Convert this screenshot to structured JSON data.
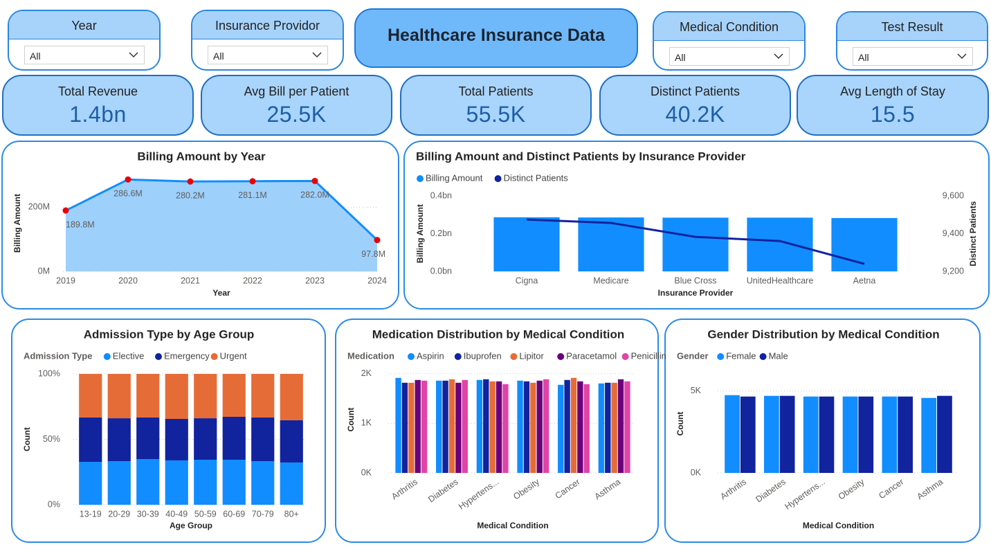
{
  "header": {
    "title": "Healthcare Insurance Data"
  },
  "filters": [
    {
      "label": "Year",
      "value": "All"
    },
    {
      "label": "Insurance Providor",
      "value": "All"
    },
    {
      "label": "Medical Condition",
      "value": "All"
    },
    {
      "label": "Test Result",
      "value": "All"
    }
  ],
  "kpis": [
    {
      "label": "Total Revenue",
      "value": "1.4bn"
    },
    {
      "label": "Avg Bill per Patient",
      "value": "25.5K"
    },
    {
      "label": "Total Patients",
      "value": "55.5K"
    },
    {
      "label": "Distinct Patients",
      "value": "40.2K"
    },
    {
      "label": "Avg Length of Stay",
      "value": "15.5"
    }
  ],
  "chart_data": [
    {
      "type": "area",
      "title": "Billing Amount by Year",
      "x_label": "Year",
      "y_label": "Billing Amount",
      "categories": [
        "2019",
        "2020",
        "2021",
        "2022",
        "2023",
        "2024"
      ],
      "values": [
        189.8,
        286.6,
        280.2,
        281.1,
        282.0,
        97.8
      ],
      "value_labels": [
        "189.8M",
        "286.6M",
        "280.2M",
        "281.1M",
        "282.0M",
        "97.8M"
      ],
      "color": "#118DFF",
      "fill_color": "#9ed0fc",
      "marker_color": "#e8000b",
      "ylim": [
        0,
        300
      ],
      "yticks": [
        {
          "value": 0,
          "label": "0M"
        },
        {
          "value": 200,
          "label": "200M"
        }
      ],
      "grid": true
    },
    {
      "type": "combo",
      "title": "Billing Amount and Distinct Patients by Insurance Provider",
      "x_label": "Insurance Provider",
      "y_label": "Billing Amount",
      "y2_label": "Distinct Patients",
      "categories": [
        "Cigna",
        "Medicare",
        "Blue Cross",
        "UnitedHealthcare",
        "Aetna"
      ],
      "series": [
        {
          "name": "Billing Amount",
          "type": "bar",
          "color": "#118DFF",
          "values": [
            0.287,
            0.286,
            0.285,
            0.285,
            0.283
          ]
        },
        {
          "name": "Distinct Patients",
          "type": "line",
          "axis": "y2",
          "color": "#12239E",
          "values": [
            9475,
            9457,
            9383,
            9361,
            9240
          ]
        }
      ],
      "ylim": [
        0,
        0.4
      ],
      "yticks": [
        {
          "value": 0,
          "label": "0.0bn"
        },
        {
          "value": 0.2,
          "label": "0.2bn"
        },
        {
          "value": 0.4,
          "label": "0.4bn"
        }
      ],
      "y2lim": [
        9200,
        9600
      ],
      "y2ticks": [
        {
          "value": 9200,
          "label": "9,200"
        },
        {
          "value": 9400,
          "label": "9,400"
        },
        {
          "value": 9600,
          "label": "9,600"
        }
      ],
      "grid": false
    },
    {
      "type": "stacked_bar",
      "title": "Admission Type by Age Group",
      "x_label": "Age Group",
      "y_label": "Count",
      "legend_title": "Admission Type",
      "categories": [
        "13-19",
        "20-29",
        "30-39",
        "40-49",
        "50-59",
        "60-69",
        "70-79",
        "80+"
      ],
      "series": [
        {
          "name": "Elective",
          "color": "#118DFF",
          "values": [
            32.8,
            33.3,
            34.9,
            33.9,
            34.4,
            34.4,
            33.3,
            32.3
          ]
        },
        {
          "name": "Emergency",
          "color": "#12239E",
          "values": [
            33.9,
            32.8,
            31.8,
            31.7,
            31.7,
            32.8,
            33.4,
            32.3
          ]
        },
        {
          "name": "Urgent",
          "color": "#E66C37",
          "values": [
            33.3,
            33.9,
            33.3,
            34.4,
            33.9,
            32.8,
            33.3,
            35.4
          ]
        }
      ],
      "ylim": [
        0,
        100
      ],
      "yticks": [
        {
          "value": 0,
          "label": "0%"
        },
        {
          "value": 50,
          "label": "50%"
        },
        {
          "value": 100,
          "label": "100%"
        }
      ],
      "grid": true
    },
    {
      "type": "grouped_bar",
      "title": "Medication Distribution by Medical Condition",
      "x_label": "Medical Condition",
      "y_label": "Count",
      "legend_title": "Medication",
      "categories": [
        "Arthritis",
        "Diabetes",
        "Hypertens...",
        "Obesity",
        "Cancer",
        "Asthma"
      ],
      "series": [
        {
          "name": "Aspirin",
          "color": "#118DFF",
          "values": [
            1916,
            1860,
            1874,
            1860,
            1776,
            1804
          ]
        },
        {
          "name": "Ibuprofen",
          "color": "#12239E",
          "values": [
            1818,
            1860,
            1888,
            1846,
            1874,
            1818
          ]
        },
        {
          "name": "Lipitor",
          "color": "#E66C37",
          "values": [
            1818,
            1888,
            1846,
            1818,
            1916,
            1818
          ]
        },
        {
          "name": "Paracetamol",
          "color": "#6B007B",
          "values": [
            1874,
            1818,
            1846,
            1860,
            1846,
            1888
          ]
        },
        {
          "name": "Penicillin",
          "color": "#E044A7",
          "values": [
            1860,
            1874,
            1790,
            1888,
            1790,
            1846
          ]
        }
      ],
      "ylim": [
        0,
        2150
      ],
      "yticks": [
        {
          "value": 0,
          "label": "0K"
        },
        {
          "value": 1000,
          "label": "1K"
        },
        {
          "value": 2000,
          "label": "2K"
        }
      ],
      "grid": true
    },
    {
      "type": "grouped_bar",
      "title": "Gender Distribution by Medical Condition",
      "x_label": "Medical Condition",
      "y_label": "Count",
      "legend_title": "Gender",
      "categories": [
        "Arthritis",
        "Diabetes",
        "Hypertens...",
        "Obesity",
        "Cancer",
        "Asthma"
      ],
      "series": [
        {
          "name": "Female",
          "color": "#118DFF",
          "values": [
            4746,
            4703,
            4661,
            4661,
            4661,
            4576
          ]
        },
        {
          "name": "Male",
          "color": "#12239E",
          "values": [
            4661,
            4703,
            4661,
            4661,
            4661,
            4703
          ]
        }
      ],
      "ylim": [
        0,
        6000
      ],
      "yticks": [
        {
          "value": 0,
          "label": "0K"
        },
        {
          "value": 5000,
          "label": "5K"
        }
      ],
      "grid": true
    }
  ]
}
